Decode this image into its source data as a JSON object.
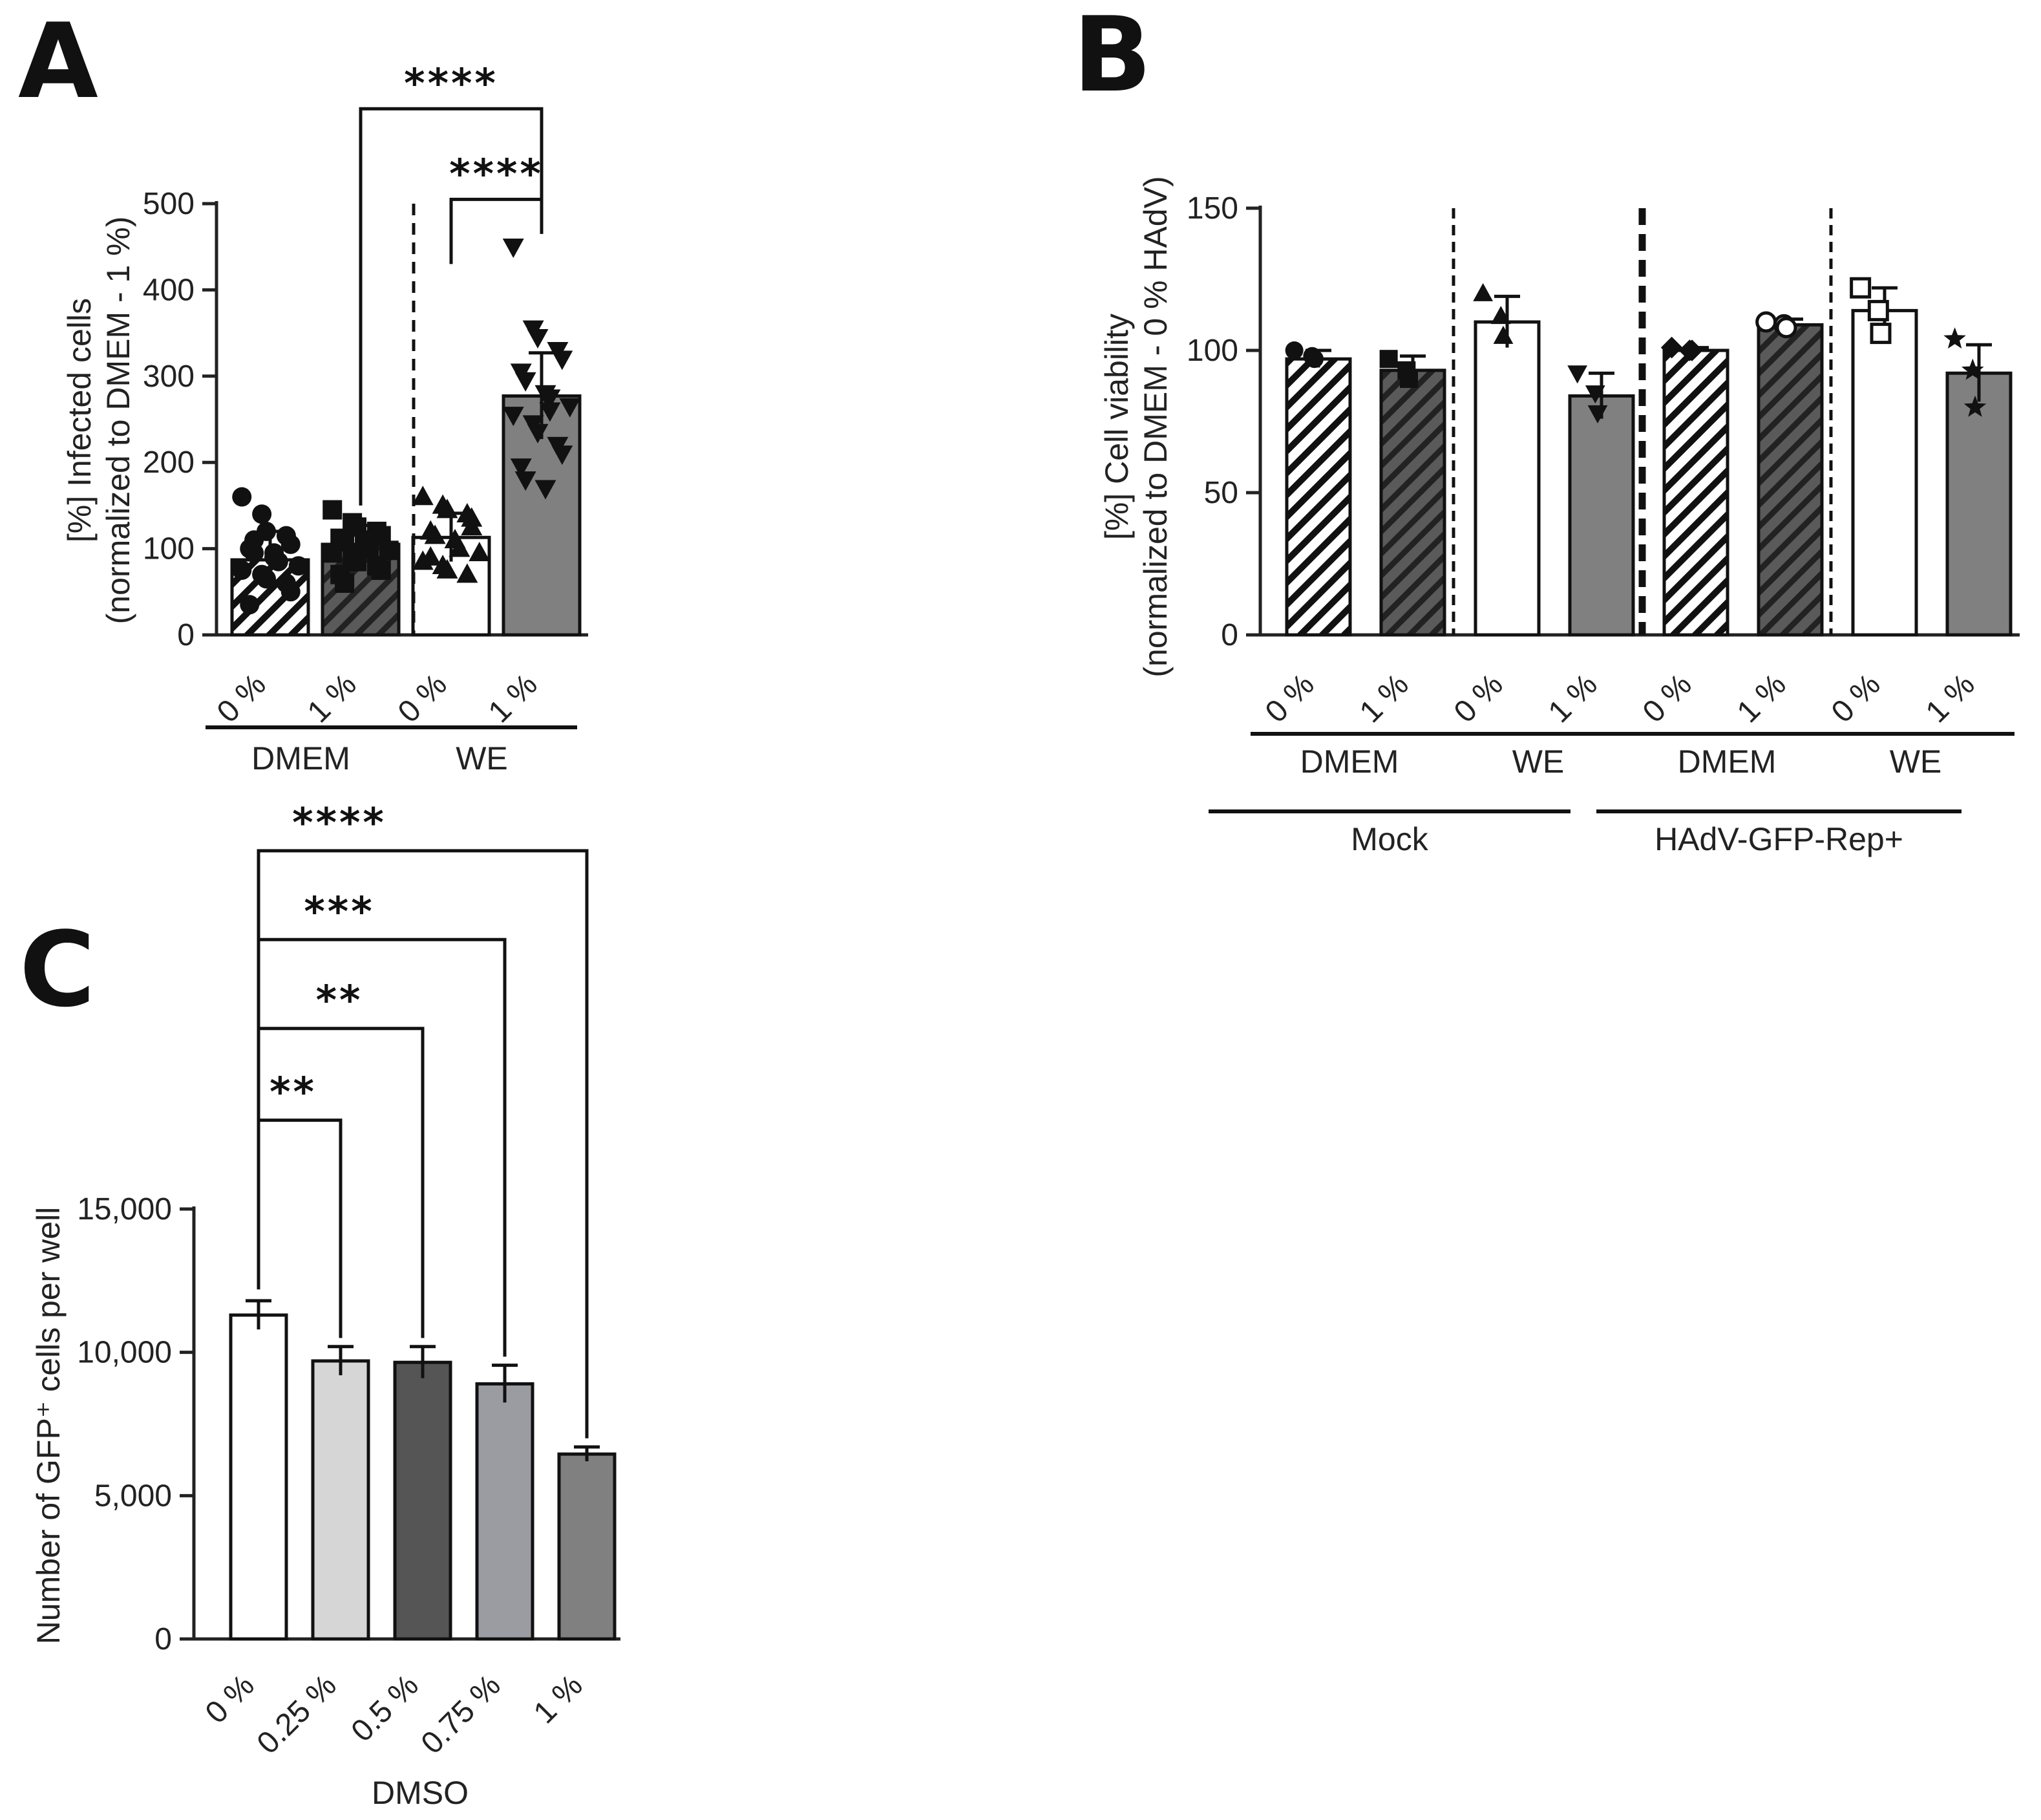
{
  "colors": {
    "white": "#ffffff",
    "dark_gray": "#555555",
    "mid_gray": "#808080",
    "light_gray": "#d6d6d6",
    "slate_gray": "#9b9ba2",
    "axis": "#222222"
  },
  "chart_data": [
    {
      "panel": "A",
      "type": "bar",
      "ylabel_line1": "[%]  Infected cells",
      "ylabel_line2": "(normalized to DMEM - 1 %)",
      "ylim": [
        0,
        500
      ],
      "yticks": [
        0,
        100,
        200,
        300,
        400,
        500
      ],
      "categories": [
        "0 %",
        "1 %",
        "0 %",
        "1 %"
      ],
      "values": [
        87,
        105,
        113,
        277
      ],
      "errors": [
        33,
        22,
        28,
        50
      ],
      "fills": [
        "hatch",
        "hatch-dark",
        "white",
        "gray"
      ],
      "markers": [
        "circle",
        "square",
        "triangle",
        "triangle-down"
      ],
      "points": [
        [
          160,
          140,
          120,
          115,
          105,
          100,
          95,
          90,
          85,
          80,
          75,
          70,
          65,
          60,
          50,
          35,
          110,
          95
        ],
        [
          145,
          130,
          125,
          120,
          115,
          112,
          108,
          105,
          100,
          98,
          95,
          90,
          85,
          80,
          75,
          70,
          60,
          110
        ],
        [
          160,
          150,
          145,
          140,
          135,
          120,
          115,
          110,
          100,
          95,
          85,
          80,
          75,
          70,
          125,
          90
        ],
        [
          450,
          355,
          345,
          330,
          320,
          305,
          295,
          280,
          275,
          265,
          255,
          245,
          235,
          220,
          210,
          195,
          180,
          170,
          260
        ]
      ],
      "groups": [
        "DMEM",
        "WE"
      ],
      "divider_after": [
        1
      ],
      "significance": [
        {
          "from": 1,
          "to": 3,
          "label": "****",
          "y": 610
        },
        {
          "from": 2,
          "to": 3,
          "label": "****",
          "y": 505
        }
      ]
    },
    {
      "panel": "B",
      "type": "bar",
      "ylabel_line1": "[%]  Cell viability",
      "ylabel_line2": "(normalized to DMEM - 0 % HAdV)",
      "ylim": [
        0,
        150
      ],
      "yticks": [
        0,
        50,
        100,
        150
      ],
      "categories": [
        "0 %",
        "1 %",
        "0 %",
        "1 %",
        "0 %",
        "1 %",
        "0 %",
        "1 %"
      ],
      "values": [
        97,
        93,
        110,
        84,
        100,
        109,
        114,
        92
      ],
      "errors": [
        3,
        5,
        9,
        8,
        1,
        2,
        8,
        10
      ],
      "fills": [
        "hatch",
        "hatch-dark",
        "white",
        "gray",
        "hatch",
        "hatch-dark",
        "white",
        "gray"
      ],
      "markers": [
        "circle",
        "square",
        "triangle",
        "triangle-down",
        "diamond",
        "hexagon",
        "square-open",
        "star"
      ],
      "points": [
        [
          100,
          98,
          97
        ],
        [
          97,
          93,
          90
        ],
        [
          120,
          112,
          105
        ],
        [
          92,
          85,
          78
        ],
        [
          101,
          100,
          100
        ],
        [
          110,
          109,
          108
        ],
        [
          122,
          114,
          106
        ],
        [
          104,
          93,
          80
        ]
      ],
      "groups": [
        "DMEM",
        "WE",
        "DMEM",
        "WE"
      ],
      "supergroups": [
        "Mock",
        "HAdV-GFP-Rep+"
      ],
      "dividers": [
        {
          "after": 1,
          "style": "thin"
        },
        {
          "after": 3,
          "style": "thick"
        },
        {
          "after": 5,
          "style": "thin"
        }
      ]
    },
    {
      "panel": "C",
      "type": "bar",
      "ylabel": "Number of GFP⁺ cells per well",
      "xlabel": "DMSO",
      "ylim": [
        0,
        15000
      ],
      "yticks": [
        0,
        5000,
        10000,
        15000
      ],
      "ytick_labels": [
        "0",
        "5,000",
        "10,000",
        "15,000"
      ],
      "categories": [
        "0 %",
        "0.25 %",
        "0.5 %",
        "0.75 %",
        "1 %"
      ],
      "values": [
        11300,
        9700,
        9650,
        8900,
        6450
      ],
      "errors": [
        500,
        500,
        550,
        650,
        250
      ],
      "fills": [
        "white",
        "light",
        "dark",
        "slate",
        "gray"
      ],
      "significance": [
        {
          "from": 0,
          "to": 1,
          "label": "**",
          "y": 18100
        },
        {
          "from": 0,
          "to": 2,
          "label": "**",
          "y": 21300
        },
        {
          "from": 0,
          "to": 3,
          "label": "***",
          "y": 24400
        },
        {
          "from": 0,
          "to": 4,
          "label": "****",
          "y": 27500
        }
      ]
    }
  ]
}
